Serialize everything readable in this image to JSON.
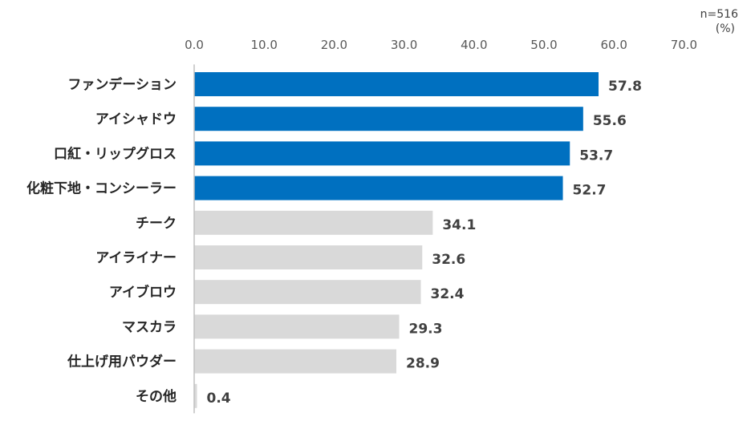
{
  "chart_data": {
    "type": "bar",
    "orientation": "horizontal",
    "sample_note": "n=516",
    "unit_note": "(%)",
    "xlim": [
      0,
      70
    ],
    "x_ticks": [
      "0.0",
      "10.0",
      "20.0",
      "30.0",
      "40.0",
      "50.0",
      "60.0",
      "70.0"
    ],
    "grid": false,
    "categories": [
      "ファンデーション",
      "アイシャドウ",
      "口紅・リップグロス",
      "化粧下地・コンシーラー",
      "チーク",
      "アイライナー",
      "アイブロウ",
      "マスカラ",
      "仕上げ用パウダー",
      "その他"
    ],
    "values": [
      57.8,
      55.6,
      53.7,
      52.7,
      34.1,
      32.6,
      32.4,
      29.3,
      28.9,
      0.4
    ],
    "value_labels": [
      "57.8",
      "55.6",
      "53.7",
      "52.7",
      "34.1",
      "32.6",
      "32.4",
      "29.3",
      "28.9",
      "0.4"
    ],
    "highlight_count": 4,
    "colors": {
      "highlight": "#0070C0",
      "normal": "#D9D9D9",
      "axis": "#BFBFBF"
    }
  }
}
